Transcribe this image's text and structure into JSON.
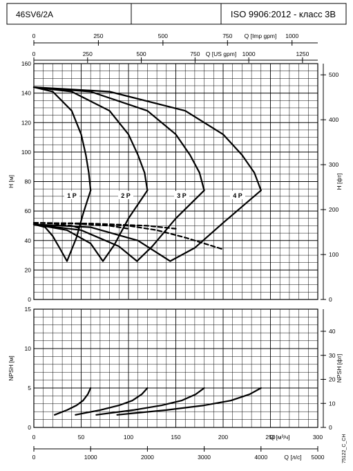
{
  "header": {
    "model": "46SV6/2A",
    "standard": "ISO 9906:2012 - класс 3B"
  },
  "figure_code": "75122_C_CH",
  "chart_data": [
    {
      "type": "line",
      "name": "head",
      "grid": true,
      "xlim": [
        0,
        300
      ],
      "ylim": [
        0,
        160
      ],
      "yticks": [
        0,
        20,
        40,
        60,
        80,
        100,
        120,
        140,
        160
      ],
      "ylabel_left": "H [м]",
      "ylabel_right": "H [фт]",
      "yticks_right": [
        0,
        100,
        200,
        300,
        400,
        500
      ],
      "top_axis_1": {
        "label": "Q [Imp gpm]",
        "ticks": [
          "0",
          "250",
          "500",
          "750",
          "1000"
        ]
      },
      "top_axis_2": {
        "label": "Q [US gpm]",
        "ticks": [
          "0",
          "250",
          "500",
          "750",
          "1000",
          "1250"
        ]
      },
      "series": [
        {
          "name": "1 P",
          "style": "solid",
          "x": [
            0,
            20,
            40,
            50,
            55,
            58,
            60
          ],
          "y": [
            144,
            141,
            128,
            112,
            98,
            86,
            74
          ]
        },
        {
          "name": "2 P",
          "style": "solid",
          "x": [
            0,
            40,
            80,
            100,
            110,
            117,
            120
          ],
          "y": [
            144,
            141,
            128,
            112,
            98,
            86,
            74
          ]
        },
        {
          "name": "3 P",
          "style": "solid",
          "x": [
            0,
            60,
            120,
            150,
            165,
            175,
            180
          ],
          "y": [
            144,
            141,
            128,
            112,
            98,
            86,
            74
          ]
        },
        {
          "name": "4 P",
          "style": "solid",
          "x": [
            0,
            80,
            160,
            200,
            220,
            233,
            240
          ],
          "y": [
            144,
            141,
            128,
            112,
            98,
            86,
            74
          ]
        },
        {
          "style": "solid",
          "x": [
            0,
            12,
            20,
            28,
            35,
            45,
            52,
            60
          ],
          "y": [
            51,
            49,
            43,
            34,
            26,
            42,
            58,
            74
          ]
        },
        {
          "style": "solid",
          "x": [
            0,
            35,
            60,
            73,
            85,
            100,
            120
          ],
          "y": [
            51,
            47,
            38,
            26,
            37,
            55,
            74
          ]
        },
        {
          "style": "solid",
          "x": [
            0,
            50,
            90,
            109,
            125,
            150,
            180
          ],
          "y": [
            51,
            47,
            36,
            26,
            36,
            55,
            74
          ]
        },
        {
          "style": "solid",
          "x": [
            0,
            60,
            110,
            144,
            170,
            200,
            240
          ],
          "y": [
            51,
            49,
            40,
            26,
            35,
            52,
            74
          ]
        },
        {
          "style": "dashed",
          "x": [
            0,
            20,
            40,
            50
          ],
          "y": [
            52,
            51.5,
            50,
            48
          ]
        },
        {
          "style": "dashed",
          "x": [
            0,
            40,
            80,
            100
          ],
          "y": [
            52,
            51.5,
            50,
            48
          ]
        },
        {
          "style": "dashed",
          "x": [
            0,
            60,
            120,
            150
          ],
          "y": [
            52,
            51.5,
            50,
            48
          ]
        },
        {
          "style": "dashed",
          "x": [
            0,
            60,
            100,
            130,
            160,
            180,
            200
          ],
          "y": [
            52,
            51.5,
            50,
            47,
            42,
            38,
            34
          ]
        }
      ],
      "labels": [
        "1 P",
        "2 P",
        "3 P",
        "4 P"
      ]
    },
    {
      "type": "line",
      "name": "npsh",
      "grid": true,
      "xlim": [
        0,
        300
      ],
      "ylim": [
        0,
        15
      ],
      "yticks": [
        0,
        5,
        10,
        15
      ],
      "ylabel_left": "NPSH [м]",
      "ylabel_right": "NPSH [фт]",
      "yticks_right": [
        0,
        10,
        20,
        30,
        40
      ],
      "xticks": [
        0,
        50,
        100,
        150,
        200,
        250,
        300
      ],
      "xlabel": "Q [м³/ч]",
      "bottom_axis_2": {
        "label": "Q [л/с]",
        "ticks": [
          "0",
          "1000",
          "2000",
          "3000",
          "4000",
          "5000"
        ]
      },
      "series": [
        {
          "style": "solid",
          "x": [
            22,
            35,
            45,
            52,
            57,
            60
          ],
          "y": [
            1.6,
            2.2,
            2.8,
            3.4,
            4.2,
            5.0
          ]
        },
        {
          "style": "solid",
          "x": [
            44,
            70,
            90,
            104,
            114,
            120
          ],
          "y": [
            1.6,
            2.2,
            2.8,
            3.4,
            4.2,
            5.0
          ]
        },
        {
          "style": "solid",
          "x": [
            66,
            105,
            135,
            156,
            171,
            180
          ],
          "y": [
            1.6,
            2.2,
            2.8,
            3.4,
            4.2,
            5.0
          ]
        },
        {
          "style": "solid",
          "x": [
            88,
            140,
            180,
            208,
            228,
            240
          ],
          "y": [
            1.6,
            2.2,
            2.8,
            3.4,
            4.2,
            5.0
          ]
        }
      ]
    }
  ]
}
